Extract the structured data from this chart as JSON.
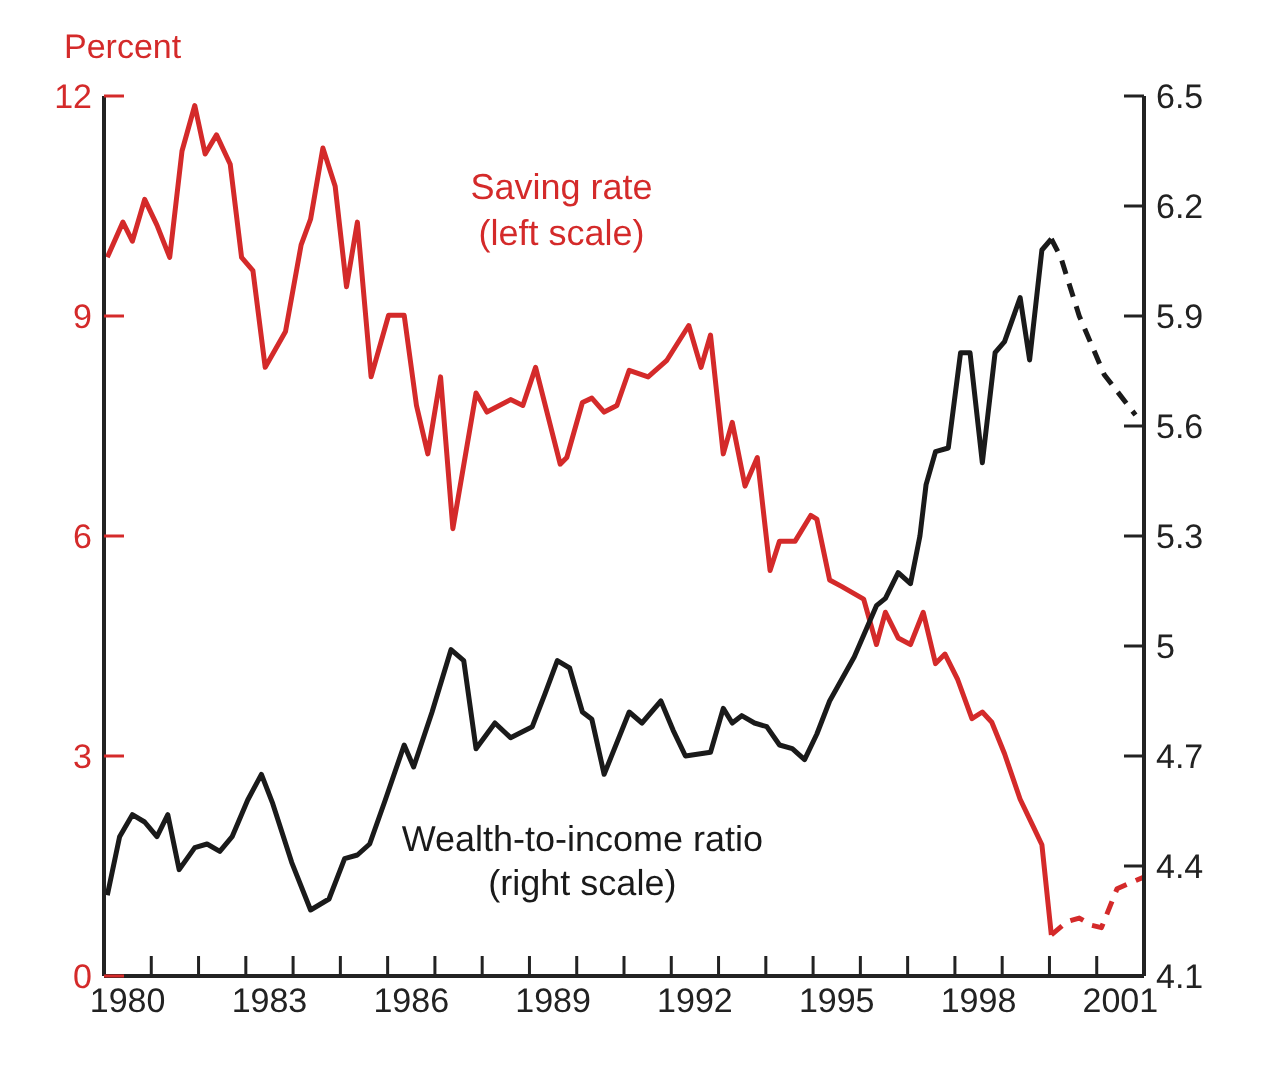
{
  "chart_data": {
    "type": "line",
    "ylabel": "Percent",
    "xlim": [
      1980,
      2002
    ],
    "xticks": [
      {
        "value": 1980.5,
        "label": "1980"
      },
      {
        "value": 1981,
        "label": null
      },
      {
        "value": 1982,
        "label": null
      },
      {
        "value": 1983,
        "label": null
      },
      {
        "value": 1983.5,
        "label": "1983"
      },
      {
        "value": 1984,
        "label": null
      },
      {
        "value": 1985,
        "label": null
      },
      {
        "value": 1986,
        "label": null
      },
      {
        "value": 1986.5,
        "label": "1986"
      },
      {
        "value": 1987,
        "label": null
      },
      {
        "value": 1988,
        "label": null
      },
      {
        "value": 1989,
        "label": null
      },
      {
        "value": 1989.5,
        "label": "1989"
      },
      {
        "value": 1990,
        "label": null
      },
      {
        "value": 1991,
        "label": null
      },
      {
        "value": 1992,
        "label": null
      },
      {
        "value": 1992.5,
        "label": "1992"
      },
      {
        "value": 1993,
        "label": null
      },
      {
        "value": 1994,
        "label": null
      },
      {
        "value": 1995,
        "label": null
      },
      {
        "value": 1995.5,
        "label": "1995"
      },
      {
        "value": 1996,
        "label": null
      },
      {
        "value": 1997,
        "label": null
      },
      {
        "value": 1998,
        "label": null
      },
      {
        "value": 1998.5,
        "label": "1998"
      },
      {
        "value": 1999,
        "label": null
      },
      {
        "value": 2000,
        "label": null
      },
      {
        "value": 2001,
        "label": null
      },
      {
        "value": 2001.5,
        "label": "2001"
      }
    ],
    "ylim": [
      0,
      12
    ],
    "yticks": [
      0,
      3,
      6,
      9,
      12
    ],
    "y2lim": [
      4.1,
      6.5
    ],
    "y2ticks": [
      4.1,
      4.4,
      4.7,
      5,
      5.3,
      5.6,
      5.9,
      6.2,
      6.5
    ],
    "series": [
      {
        "name": "Saving rate\n(left scale)",
        "color": "#d42a2a",
        "x": [
          1980.07,
          1980.4,
          1980.6,
          1980.86,
          1981.12,
          1981.39,
          1981.65,
          1981.92,
          1982.14,
          1982.38,
          1982.67,
          1982.91,
          1983.15,
          1983.41,
          1983.84,
          1984.17,
          1984.37,
          1984.63,
          1984.89,
          1985.13,
          1985.36,
          1985.65,
          1986.02,
          1986.35,
          1986.61,
          1986.85,
          1987.12,
          1987.38,
          1987.87,
          1988.1,
          1988.6,
          1988.86,
          1989.13,
          1989.65,
          1989.79,
          1990.12,
          1990.32,
          1990.58,
          1990.85,
          1991.11,
          1991.51,
          1991.9,
          1992.37,
          1992.63,
          1992.83,
          1993.1,
          1993.29,
          1993.56,
          1993.82,
          1994.09,
          1994.29,
          1994.62,
          1994.95,
          1995.08,
          1995.35,
          1995.61,
          1996.07,
          1996.34,
          1996.53,
          1996.8,
          1997.06,
          1997.33,
          1997.59,
          1997.79,
          1998.06,
          1998.36,
          1998.58,
          1998.78,
          1999.05,
          1999.38,
          1999.64,
          1999.84,
          2000.04
        ],
        "values": [
          9.8,
          10.28,
          10.02,
          10.59,
          10.24,
          9.8,
          11.25,
          11.87,
          11.21,
          11.47,
          11.07,
          9.8,
          9.62,
          8.3,
          8.79,
          9.97,
          10.32,
          11.29,
          10.77,
          9.4,
          10.28,
          8.17,
          9.01,
          9.01,
          7.78,
          7.12,
          8.17,
          6.1,
          7.95,
          7.69,
          7.86,
          7.78,
          8.3,
          6.98,
          7.07,
          7.82,
          7.88,
          7.69,
          7.78,
          8.26,
          8.17,
          8.39,
          8.87,
          8.3,
          8.74,
          7.12,
          7.55,
          6.68,
          7.07,
          5.53,
          5.93,
          5.93,
          6.28,
          6.23,
          5.4,
          5.31,
          5.14,
          4.52,
          4.96,
          4.61,
          4.52,
          4.96,
          4.26,
          4.39,
          4.04,
          3.51,
          3.6,
          3.46,
          3.03,
          2.41,
          2.06,
          1.79,
          0.56
        ]
      },
      {
        "color": "#d42a2a",
        "line_style": "dashed",
        "x": [
          2000.04,
          2000.37,
          2000.63,
          2000.9,
          2001.1,
          2001.43,
          2002
        ],
        "values": [
          0.56,
          0.74,
          0.79,
          0.69,
          0.66,
          1.19,
          1.35
        ]
      },
      {
        "name": "Wealth-to-income ratio\n(right scale)",
        "color": "#1a1a1a",
        "axis": "y2",
        "x": [
          1980.07,
          1980.33,
          1980.6,
          1980.86,
          1981.12,
          1981.35,
          1981.59,
          1981.92,
          1982.18,
          1982.45,
          1982.71,
          1983.04,
          1983.33,
          1983.57,
          1983.97,
          1984.37,
          1984.76,
          1985.09,
          1985.36,
          1985.62,
          1985.95,
          1986.35,
          1986.55,
          1986.94,
          1987.34,
          1987.61,
          1987.87,
          1988.27,
          1988.6,
          1989.06,
          1989.33,
          1989.59,
          1989.85,
          1990.12,
          1990.32,
          1990.58,
          1991.11,
          1991.38,
          1991.78,
          1992.04,
          1992.3,
          1992.83,
          1993.1,
          1993.29,
          1993.49,
          1993.76,
          1994.02,
          1994.29,
          1994.56,
          1994.82,
          1995.08,
          1995.35,
          1995.87,
          1996.34,
          1996.53,
          1996.8,
          1997.06,
          1997.26,
          1997.39,
          1997.59,
          1997.86,
          1998.12,
          1998.32,
          1998.58,
          1998.85,
          1999.05,
          1999.38,
          1999.58,
          1999.84,
          2000.04
        ],
        "values": [
          4.32,
          4.48,
          4.54,
          4.52,
          4.48,
          4.54,
          4.39,
          4.45,
          4.46,
          4.44,
          4.48,
          4.58,
          4.65,
          4.57,
          4.41,
          4.28,
          4.31,
          4.42,
          4.43,
          4.46,
          4.58,
          4.73,
          4.67,
          4.82,
          4.99,
          4.96,
          4.72,
          4.79,
          4.75,
          4.78,
          4.87,
          4.96,
          4.94,
          4.82,
          4.8,
          4.65,
          4.82,
          4.79,
          4.85,
          4.77,
          4.7,
          4.71,
          4.83,
          4.79,
          4.81,
          4.79,
          4.78,
          4.73,
          4.72,
          4.69,
          4.76,
          4.85,
          4.97,
          5.11,
          5.13,
          5.2,
          5.17,
          5.3,
          5.44,
          5.53,
          5.54,
          5.8,
          5.8,
          5.5,
          5.8,
          5.83,
          5.95,
          5.78,
          6.08,
          6.11
        ]
      },
      {
        "color": "#1a1a1a",
        "axis": "y2",
        "line_style": "dashed",
        "x": [
          2000.04,
          2000.24,
          2000.63,
          2001.16,
          2001.82
        ],
        "values": [
          6.11,
          6.06,
          5.9,
          5.74,
          5.63
        ]
      }
    ]
  }
}
